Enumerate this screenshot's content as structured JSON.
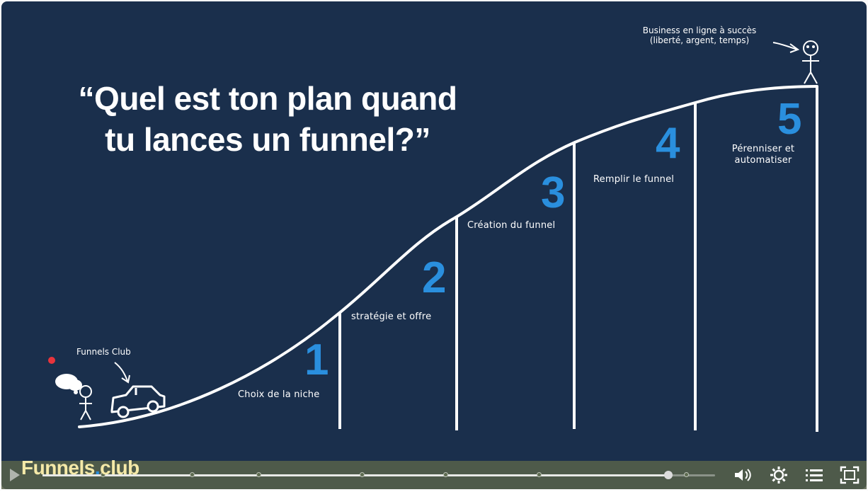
{
  "slide": {
    "headline_line1": "“Quel est ton plan quand",
    "headline_line2": "tu lances un funnel?”",
    "car_note": "Funnels Club",
    "success_note_line1": "Business en ligne à succès",
    "success_note_line2": "(liberté, argent, temps)",
    "steps": [
      {
        "number": "1",
        "label": "Choix de la niche"
      },
      {
        "number": "2",
        "label": "stratégie et offre"
      },
      {
        "number": "3",
        "label": "Création du funnel"
      },
      {
        "number": "4",
        "label": "Remplir le funnel"
      },
      {
        "number": "5",
        "label_line1": "Pérenniser et",
        "label_line2": "automatiser"
      }
    ],
    "colors": {
      "background": "#1a2f4c",
      "step_number": "#2a8fde",
      "line": "#ffffff"
    }
  },
  "player": {
    "brand_name": "Funnels",
    "brand_dot": ".",
    "brand_suffix": "club",
    "progress_fraction": 0.93,
    "chapter_count": 7,
    "icons": [
      "play-icon",
      "volume-icon",
      "settings-icon",
      "chapters-icon",
      "fullscreen-icon"
    ]
  }
}
